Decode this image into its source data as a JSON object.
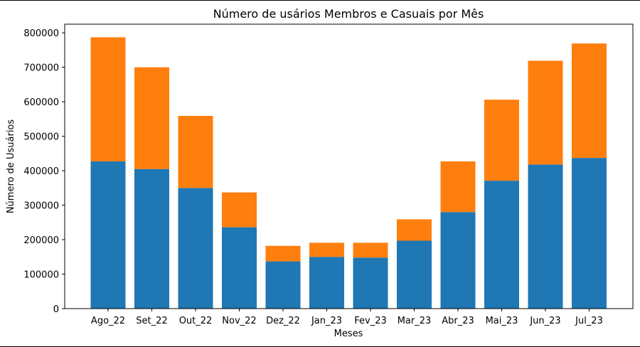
{
  "chart_data": {
    "type": "bar",
    "stacked": true,
    "title": "Número de  usários Membros e Casuais por Mês",
    "xlabel": "Meses",
    "ylabel": "Número de Usuários",
    "categories": [
      "Ago_22",
      "Set_22",
      "Out_22",
      "Nov_22",
      "Dez_22",
      "Jan_23",
      "Fev_23",
      "Mar_23",
      "Abr_23",
      "Mai_23",
      "Jun_23",
      "Jul_23"
    ],
    "series": [
      {
        "color": "#1f77b4",
        "values": [
          427000,
          405000,
          350000,
          236000,
          137000,
          150000,
          148000,
          197000,
          280000,
          371000,
          418000,
          437000
        ]
      },
      {
        "color": "#ff7f0e",
        "values": [
          360000,
          295000,
          209000,
          101000,
          45000,
          41000,
          43000,
          62000,
          147000,
          235000,
          301000,
          332000
        ]
      }
    ],
    "ylim": [
      0,
      825000
    ],
    "yticks": [
      0,
      100000,
      200000,
      300000,
      400000,
      500000,
      600000,
      700000,
      800000
    ],
    "ytick_labels": [
      "0",
      "100000",
      "200000",
      "300000",
      "400000",
      "500000",
      "600000",
      "700000",
      "800000"
    ],
    "grid": false,
    "legend": false
  }
}
